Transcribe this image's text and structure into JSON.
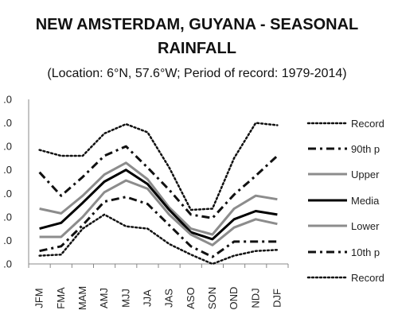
{
  "chart_data": {
    "type": "line",
    "title_line1": "NEW AMSTERDAM, GUYANA - SEASONAL",
    "title_line2": "RAINFALL",
    "subtitle": "(Location: 6°N, 57.6°W; Period of record: 1979-2014)",
    "categories": [
      "JFM",
      "FMA",
      "MAM",
      "AMJ",
      "MJJ",
      "JJA",
      "JAS",
      "ASO",
      "SON",
      "OND",
      "NDJ",
      "DJF"
    ],
    "y_tick_labels": [
      ".0",
      ".0",
      ".0",
      ".0",
      ".0",
      ".0",
      ".0",
      ".0"
    ],
    "ylim": [
      0,
      7
    ],
    "grid": false,
    "legend_position": "right",
    "series": [
      {
        "name": "Record",
        "style": "dotted",
        "color": "#111111",
        "values": [
          4.85,
          4.6,
          4.6,
          5.55,
          5.95,
          5.6,
          4.1,
          2.3,
          2.35,
          4.5,
          6.0,
          5.9
        ]
      },
      {
        "name": "90th p",
        "style": "dashdot",
        "color": "#111111",
        "values": [
          3.9,
          2.9,
          3.7,
          4.6,
          5.0,
          4.1,
          3.15,
          2.1,
          1.95,
          2.95,
          3.75,
          4.6
        ]
      },
      {
        "name": "Upper",
        "style": "solid",
        "color": "#8c8c8c",
        "values": [
          2.35,
          2.15,
          2.9,
          3.8,
          4.3,
          3.6,
          2.4,
          1.5,
          1.25,
          2.35,
          2.9,
          2.75
        ]
      },
      {
        "name": "Media",
        "style": "solid",
        "color": "#000000",
        "values": [
          1.5,
          1.75,
          2.6,
          3.5,
          4.0,
          3.4,
          2.3,
          1.35,
          1.05,
          1.9,
          2.25,
          2.1
        ]
      },
      {
        "name": "Lower",
        "style": "solid",
        "color": "#8c8c8c",
        "values": [
          1.15,
          1.15,
          2.0,
          3.05,
          3.55,
          3.2,
          2.1,
          1.25,
          0.8,
          1.55,
          1.9,
          1.7
        ]
      },
      {
        "name": "10th p",
        "style": "dashdot",
        "color": "#111111",
        "values": [
          0.55,
          0.75,
          1.65,
          2.65,
          2.85,
          2.55,
          1.65,
          0.75,
          0.3,
          0.95,
          0.95,
          0.95
        ]
      },
      {
        "name": "Record",
        "style": "dotted",
        "color": "#111111",
        "values": [
          0.35,
          0.4,
          1.5,
          2.1,
          1.6,
          1.5,
          0.85,
          0.4,
          0.0,
          0.35,
          0.55,
          0.6
        ]
      }
    ]
  }
}
